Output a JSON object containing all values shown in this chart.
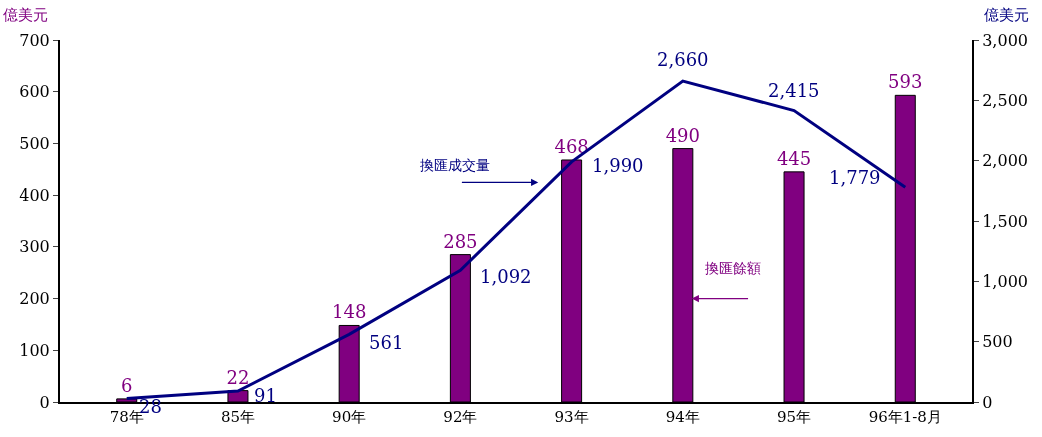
{
  "chart_data": {
    "type": "bar",
    "categories": [
      "78年",
      "85年",
      "90年",
      "92年",
      "93年",
      "94年",
      "95年",
      "96年1-8月"
    ],
    "ylabel": "億美元",
    "y2label": "億美元",
    "ylim": [
      0,
      700
    ],
    "yticks": [
      0,
      100,
      200,
      300,
      400,
      500,
      600,
      700
    ],
    "y2lim": [
      0,
      3000
    ],
    "y2ticks": [
      0,
      500,
      {
        "value": 1000,
        "label": "1,000"
      },
      {
        "value": 1500,
        "label": "1,500"
      },
      {
        "value": 2000,
        "label": "2,000"
      },
      {
        "value": 2500,
        "label": "2,500"
      },
      {
        "value": 3000,
        "label": "3,000"
      }
    ],
    "legend": false,
    "series": [
      {
        "name": "換匯餘額",
        "color": "#800080",
        "values": [
          6,
          22,
          148,
          285,
          468,
          490,
          445,
          593
        ],
        "value_labels": [
          "6",
          "22",
          "148",
          "285",
          "468",
          "490",
          "445",
          "593"
        ]
      },
      {
        "name": "換匯成交量",
        "type": "line",
        "axis": "y2",
        "color": "#000080",
        "marker": "none",
        "line_style": "solid",
        "values": [
          28,
          91,
          561,
          1092,
          1990,
          2660,
          2415,
          1779
        ],
        "value_labels": [
          "28",
          "91",
          "561",
          "1,092",
          "1,990",
          "2,660",
          "2,415",
          "1,779"
        ]
      }
    ]
  }
}
